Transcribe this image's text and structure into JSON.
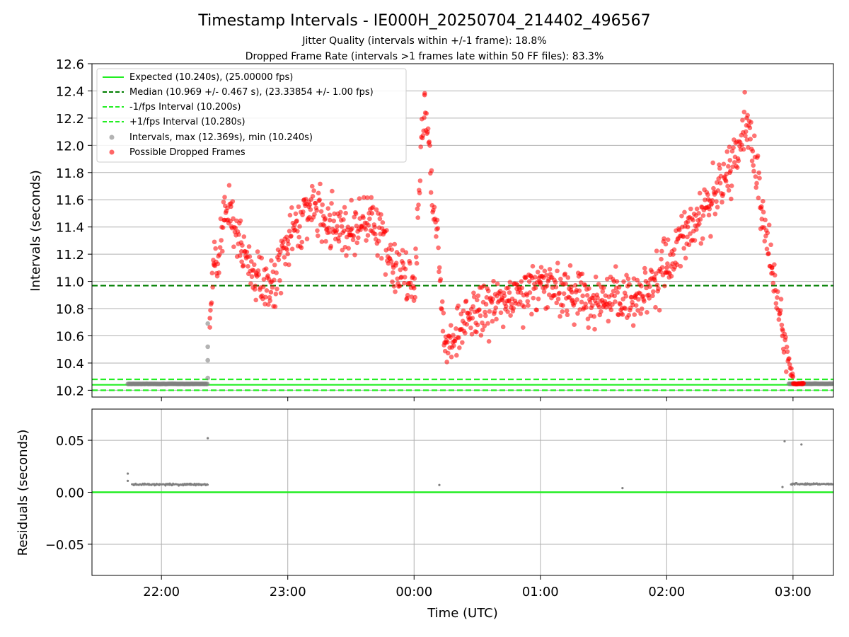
{
  "chart_data": [
    {
      "type": "scatter",
      "title": "Timestamp Intervals - IE000H_20250704_214402_496567",
      "subtitle_1": "Jitter Quality (intervals within +/-1 frame): 18.8%",
      "subtitle_2": "Dropped Frame Rate (intervals >1 frames late within 50 FF files): 83.3%",
      "xlabel": "",
      "ylabel": "Intervals (seconds)",
      "ylim": [
        10.15,
        12.6
      ],
      "yticks": [
        10.2,
        10.4,
        10.6,
        10.8,
        11.0,
        11.2,
        11.4,
        11.6,
        11.8,
        12.0,
        12.2,
        12.4,
        12.6
      ],
      "ytick_labels": [
        "10.2",
        "10.4",
        "10.6",
        "10.8",
        "11.0",
        "11.2",
        "11.4",
        "11.6",
        "11.8",
        "12.0",
        "12.2",
        "12.4",
        "12.6"
      ],
      "xlim_hours": [
        21.45,
        27.32
      ],
      "grid": true,
      "legend_position": "top-left",
      "legend": [
        {
          "label": "Expected (10.240s), (25.00000 fps)",
          "style": "solid",
          "color": "#22ee22"
        },
        {
          "label": "Median (10.969 +/- 0.467 s), (23.33854 +/- 1.00 fps)",
          "style": "dashed",
          "color": "#007f00"
        },
        {
          "label": "-1/fps Interval (10.200s)",
          "style": "dashed",
          "color": "#22ee22"
        },
        {
          "label": "+1/fps Interval (10.280s)",
          "style": "dashed",
          "color": "#22ee22"
        },
        {
          "label": "Intervals, max (12.369s), min (10.240s)",
          "style": "marker",
          "color": "#808080"
        },
        {
          "label": "Possible Dropped Frames",
          "style": "marker",
          "color": "#ff0000"
        }
      ],
      "hlines": {
        "expected": 10.24,
        "median": 10.969,
        "minus_one": 10.2,
        "plus_one": 10.28
      },
      "series": [
        {
          "name": "Intervals, max (12.369s), min (10.240s)",
          "segments": [
            {
              "x_start": "21:44",
              "x_end": "22:22",
              "y": 10.247
            },
            {
              "x_start": "02:58",
              "x_end": "03:19",
              "y": 10.248
            }
          ],
          "points": [
            {
              "x": "22:22",
              "y": 10.29
            },
            {
              "x": "22:22",
              "y": 10.42
            },
            {
              "x": "22:22",
              "y": 10.52
            },
            {
              "x": "22:22",
              "y": 10.69
            }
          ]
        },
        {
          "name": "Possible Dropped Frames",
          "points": [
            {
              "x": "22:23",
              "y": 10.73
            },
            {
              "x": "22:25",
              "y": 11.12
            },
            {
              "x": "22:30",
              "y": 11.45
            },
            {
              "x": "22:33",
              "y": 11.55
            },
            {
              "x": "22:38",
              "y": 11.22
            },
            {
              "x": "22:45",
              "y": 11.05
            },
            {
              "x": "22:52",
              "y": 10.92
            },
            {
              "x": "23:00",
              "y": 11.3
            },
            {
              "x": "23:10",
              "y": 11.55
            },
            {
              "x": "23:20",
              "y": 11.45
            },
            {
              "x": "23:30",
              "y": 11.38
            },
            {
              "x": "23:40",
              "y": 11.5
            },
            {
              "x": "23:50",
              "y": 11.12
            },
            {
              "x": "00:00",
              "y": 10.95
            },
            {
              "x": "00:05",
              "y": 12.37
            },
            {
              "x": "00:15",
              "y": 10.55
            },
            {
              "x": "00:30",
              "y": 10.78
            },
            {
              "x": "00:45",
              "y": 10.86
            },
            {
              "x": "01:00",
              "y": 10.98
            },
            {
              "x": "01:15",
              "y": 10.92
            },
            {
              "x": "01:30",
              "y": 10.84
            },
            {
              "x": "01:45",
              "y": 10.88
            },
            {
              "x": "02:00",
              "y": 11.1
            },
            {
              "x": "02:10",
              "y": 11.4
            },
            {
              "x": "02:20",
              "y": 11.55
            },
            {
              "x": "02:30",
              "y": 11.8
            },
            {
              "x": "02:38",
              "y": 12.2
            },
            {
              "x": "02:45",
              "y": 11.55
            },
            {
              "x": "02:50",
              "y": 11.1
            },
            {
              "x": "02:55",
              "y": 10.6
            },
            {
              "x": "03:00",
              "y": 10.3
            },
            {
              "x": "03:05",
              "y": 10.25
            }
          ]
        }
      ]
    },
    {
      "type": "scatter",
      "xlabel": "Time (UTC)",
      "ylabel": "Residuals (seconds)",
      "ylim": [
        -0.08,
        0.08
      ],
      "yticks": [
        -0.05,
        0.0,
        0.05
      ],
      "ytick_labels": [
        "−0.05",
        "0.00",
        "0.05"
      ],
      "xticks_hours": [
        22,
        23,
        24,
        25,
        26,
        27
      ],
      "xtick_labels": [
        "22:00",
        "23:00",
        "00:00",
        "01:00",
        "02:00",
        "03:00"
      ],
      "grid": true,
      "zero_line_color": "#22ee22",
      "series": [
        {
          "name": "",
          "color": "#808080",
          "segments": [
            {
              "x_start": "21:46",
              "x_end": "22:22",
              "y": 0.0075
            },
            {
              "x_start": "02:59",
              "x_end": "03:19",
              "y": 0.008
            }
          ],
          "points": [
            {
              "x": "21:44",
              "y": 0.018
            },
            {
              "x": "21:44",
              "y": 0.011
            },
            {
              "x": "22:22",
              "y": 0.052
            },
            {
              "x": "00:12",
              "y": 0.007
            },
            {
              "x": "01:39",
              "y": 0.004
            },
            {
              "x": "02:56",
              "y": 0.049
            },
            {
              "x": "02:55",
              "y": 0.005
            },
            {
              "x": "03:04",
              "y": 0.046
            }
          ]
        }
      ]
    }
  ]
}
